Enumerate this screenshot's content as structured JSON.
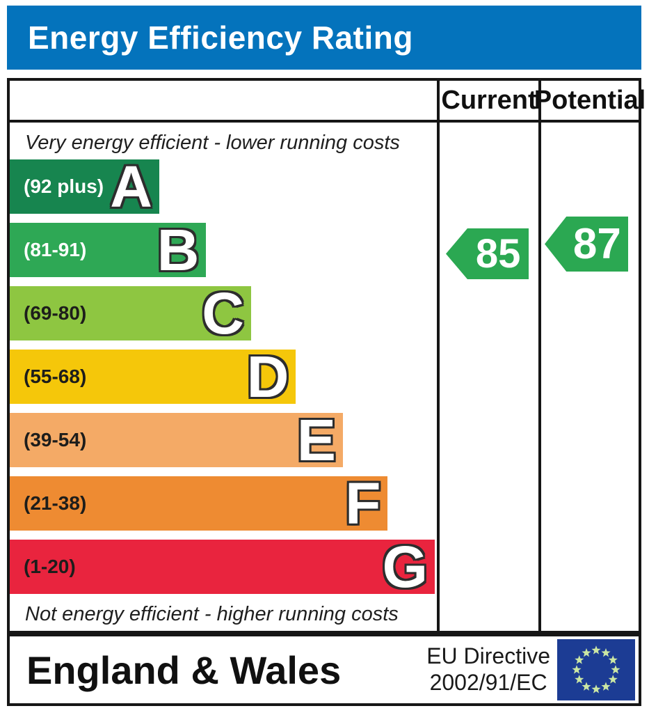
{
  "title": {
    "text": "Energy Efficiency Rating",
    "bg": "#0473bc",
    "fg": "#ffffff"
  },
  "header": {
    "current": "Current",
    "potential": "Potential"
  },
  "chart_data": {
    "type": "bar",
    "title": "Energy Efficiency Rating",
    "top_note": "Very energy efficient - lower running costs",
    "bottom_note": "Not energy efficient - higher running costs",
    "bands": [
      {
        "letter": "A",
        "range": "(92 plus)",
        "color": "#17854f",
        "label_color": "#ffffff",
        "width_pct": 35
      },
      {
        "letter": "B",
        "range": "(81-91)",
        "color": "#2ea855",
        "label_color": "#ffffff",
        "width_pct": 46
      },
      {
        "letter": "C",
        "range": "(69-80)",
        "color": "#8ec641",
        "label_color": "#1d1d1b",
        "width_pct": 56.5
      },
      {
        "letter": "D",
        "range": "(55-68)",
        "color": "#f5c70a",
        "label_color": "#1d1d1b",
        "width_pct": 67
      },
      {
        "letter": "E",
        "range": "(39-54)",
        "color": "#f4aa66",
        "label_color": "#1d1d1b",
        "width_pct": 78
      },
      {
        "letter": "F",
        "range": "(21-38)",
        "color": "#ee8b32",
        "label_color": "#1d1d1b",
        "width_pct": 88.5
      },
      {
        "letter": "G",
        "range": "(1-20)",
        "color": "#e9243e",
        "label_color": "#1d1d1b",
        "width_pct": 99.5
      }
    ],
    "current": {
      "value": 85,
      "band": "B",
      "color": "#2ba852"
    },
    "potential": {
      "value": 87,
      "band": "B",
      "color": "#2ba852"
    }
  },
  "footer": {
    "region": "England & Wales",
    "directive_line1": "EU Directive",
    "directive_line2": "2002/91/EC",
    "flag": {
      "name": "eu-flag",
      "bg": "#1c3c94",
      "star_color": "#cbe7a4",
      "stars": 12
    }
  }
}
